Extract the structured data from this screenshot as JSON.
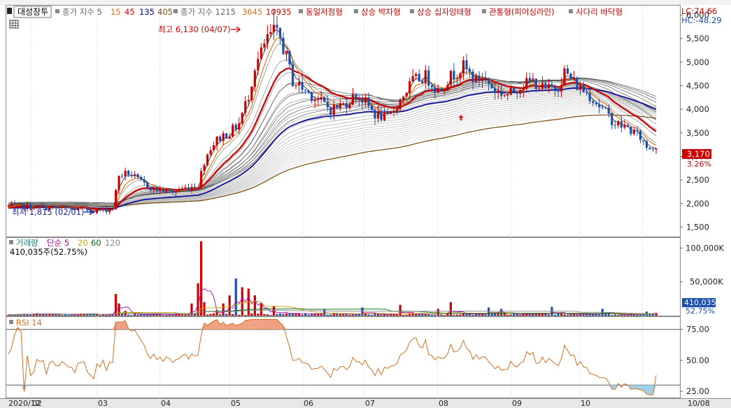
{
  "legend_top": {
    "stock_name": "대성창투",
    "ma_short_label": "종가 지수 5",
    "ma_short_periods": [
      {
        "label": "15",
        "color": "#e07000"
      },
      {
        "label": "45",
        "color": "#cc0000"
      },
      {
        "label": "135",
        "color": "#000099"
      },
      {
        "label": "405",
        "color": "#7a4a10"
      }
    ],
    "ma_long_label": "종가 지수 1215",
    "ma_long_periods": [
      {
        "label": "3645",
        "color": "#e07000"
      },
      {
        "label": "10935",
        "color": "#cc0000"
      }
    ],
    "patterns": [
      "동일저점형",
      "상승 박차형",
      "상승 십자잉태형",
      "관통형(피어싱라인)",
      "사다리 바닥형"
    ]
  },
  "price_panel": {
    "lc_label": "LC:74.66",
    "hc_label": "HC:-48.29",
    "high_annotation": "최고 6,130 (04/07)",
    "low_annotation": "최저 1,815 (02/01)",
    "current_price": "3,170",
    "current_change": "3.26%",
    "y_ticks": [
      "6,000",
      "5,500",
      "5,000",
      "4,500",
      "4,000",
      "3,500",
      "3,000",
      "2,500",
      "2,000",
      "1,500"
    ]
  },
  "volume_panel": {
    "legend_label": "거래량",
    "ma_label": "단순 5",
    "ma_periods": [
      {
        "label": "20",
        "color": "#c8a000"
      },
      {
        "label": "60",
        "color": "#006600"
      },
      {
        "label": "120",
        "color": "#888888"
      }
    ],
    "current_volume_label": "410,035주(52.75%)",
    "current_value": "410,035",
    "current_pct": "52.75%",
    "y_ticks": [
      "100,000K",
      "50,000K"
    ]
  },
  "rsi_panel": {
    "legend_label": "RSI 14",
    "y_ticks": [
      "75.00",
      "50.00",
      "25.00"
    ]
  },
  "x_axis": {
    "labels": [
      "2020/12",
      "02",
      "03",
      "04",
      "05",
      "06",
      "07",
      "08",
      "09",
      "10",
      "10/08"
    ]
  },
  "colors": {
    "up": "#cc0000",
    "down": "#1a4fb0",
    "rsi_line": "#d07020",
    "rsi_fill": "#f0a080",
    "ma405": "#7a4a10",
    "ma135": "#000099",
    "ma45": "#cc0000",
    "ma15": "#e07000"
  },
  "chart_data": {
    "type": "candlestick",
    "title": "대성창투",
    "price_ylim": [
      1300,
      6200
    ],
    "monthly_closes": [
      {
        "month": "2020/12",
        "close": 1900
      },
      {
        "month": "01",
        "close": 1870
      },
      {
        "month": "02",
        "close": 2350
      },
      {
        "month": "03",
        "close": 2700
      },
      {
        "month": "04",
        "close": 4600
      },
      {
        "month": "05",
        "close": 3900
      },
      {
        "month": "06",
        "close": 4400
      },
      {
        "month": "07",
        "close": 4300
      },
      {
        "month": "08",
        "close": 4250
      },
      {
        "month": "09",
        "close": 3500
      },
      {
        "month": "10",
        "close": 3170
      }
    ],
    "high": {
      "value": 6130,
      "date": "04/07"
    },
    "low": {
      "value": 1815,
      "date": "02/01"
    },
    "current": {
      "value": 3170,
      "change_pct": 3.26
    },
    "volume": {
      "current": 410035,
      "pct": 52.75,
      "ylim": [
        0,
        115000
      ],
      "unit": "K"
    },
    "rsi": {
      "period": 14,
      "ylim": [
        20,
        85
      ],
      "levels": [
        75,
        30
      ]
    }
  }
}
